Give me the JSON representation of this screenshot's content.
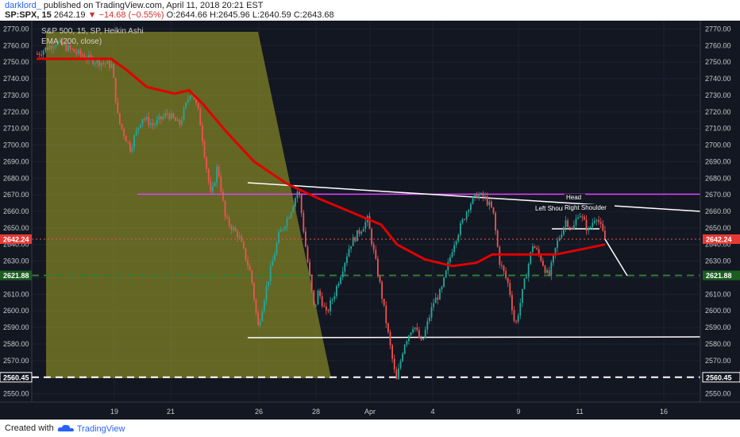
{
  "header": {
    "author": "darklord_",
    "published": "published on TradingView.com, April 11, 2018 20:21 EST",
    "symbol": "SP:SPX, 15",
    "last": "2642.19",
    "change": "−14.68 (−0.55%)",
    "o_label": "O:",
    "o": "2644.66",
    "h_label": "H:",
    "h": "2645.96",
    "l_label": "L:",
    "l": "2640.59",
    "c_label": "C:",
    "c": "2643.68"
  },
  "footer": {
    "created_with": "Created with",
    "brand": "TradingView"
  },
  "colors": {
    "background": "#131722",
    "bull": "#26a69a",
    "bear": "#ef5350",
    "ema": "#e00000",
    "resistance": "#e040fb",
    "price_badge": "#e53935",
    "support_badge": "#1b5e20",
    "triangle": "#a8a826"
  },
  "chart_data": {
    "type": "candlestick",
    "title": "S&P 500, 15, SP, Heikin Ashi",
    "indicator": "EMA (200, close)",
    "ylim": [
      2545,
      2775
    ],
    "y_ticks": [
      "2770.00",
      "2760.00",
      "2750.00",
      "2740.00",
      "2730.00",
      "2720.00",
      "2710.00",
      "2700.00",
      "2690.00",
      "2680.00",
      "2670.00",
      "2660.00",
      "2650.00",
      "2640.00",
      "2630.00",
      "2620.00",
      "2610.00",
      "2600.00",
      "2590.00",
      "2580.00",
      "2570.00",
      "2560.00",
      "2550.00"
    ],
    "x_ticks": [
      "19",
      "21",
      "26",
      "28",
      "Apr",
      "4",
      "9",
      "11",
      "16"
    ],
    "price_path": [
      {
        "x": "Mar 16",
        "y": 2755
      },
      {
        "x": "Mar 16",
        "y": 2762
      },
      {
        "x": "Mar 16",
        "y": 2752
      },
      {
        "x": "Mar 19",
        "y": 2748
      },
      {
        "x": "Mar 19",
        "y": 2715
      },
      {
        "x": "Mar 19",
        "y": 2698
      },
      {
        "x": "Mar 20",
        "y": 2717
      },
      {
        "x": "Mar 20",
        "y": 2712
      },
      {
        "x": "Mar 21",
        "y": 2719
      },
      {
        "x": "Mar 21",
        "y": 2712
      },
      {
        "x": "Mar 21",
        "y": 2734
      },
      {
        "x": "Mar 22",
        "y": 2718
      },
      {
        "x": "Mar 22",
        "y": 2690
      },
      {
        "x": "Mar 22",
        "y": 2668
      },
      {
        "x": "Mar 23",
        "y": 2688
      },
      {
        "x": "Mar 23",
        "y": 2655
      },
      {
        "x": "Mar 23",
        "y": 2645
      },
      {
        "x": "Mar 26",
        "y": 2622
      },
      {
        "x": "Mar 26",
        "y": 2590
      },
      {
        "x": "Mar 26",
        "y": 2615
      },
      {
        "x": "Mar 26",
        "y": 2645
      },
      {
        "x": "Mar 27",
        "y": 2660
      },
      {
        "x": "Mar 27",
        "y": 2674
      },
      {
        "x": "Mar 27",
        "y": 2635
      },
      {
        "x": "Mar 28",
        "y": 2600
      },
      {
        "x": "Mar 28",
        "y": 2612
      },
      {
        "x": "Mar 29",
        "y": 2598
      },
      {
        "x": "Mar 29",
        "y": 2610
      },
      {
        "x": "Mar 29",
        "y": 2640
      },
      {
        "x": "Mar 29",
        "y": 2655
      },
      {
        "x": "Apr 2",
        "y": 2615
      },
      {
        "x": "Apr 2",
        "y": 2580
      },
      {
        "x": "Apr 2",
        "y": 2557
      },
      {
        "x": "Apr 3",
        "y": 2580
      },
      {
        "x": "Apr 3",
        "y": 2592
      },
      {
        "x": "Apr 4",
        "y": 2580
      },
      {
        "x": "Apr 4",
        "y": 2605
      },
      {
        "x": "Apr 4",
        "y": 2612
      },
      {
        "x": "Apr 5",
        "y": 2640
      },
      {
        "x": "Apr 5",
        "y": 2664
      },
      {
        "x": "Apr 6",
        "y": 2670
      },
      {
        "x": "Apr 6",
        "y": 2668
      },
      {
        "x": "Apr 6",
        "y": 2660
      },
      {
        "x": "Apr 9",
        "y": 2630
      },
      {
        "x": "Apr 9",
        "y": 2615
      },
      {
        "x": "Apr 9",
        "y": 2590
      },
      {
        "x": "Apr 9",
        "y": 2618
      },
      {
        "x": "Apr 10",
        "y": 2640
      },
      {
        "x": "Apr 10",
        "y": 2632
      },
      {
        "x": "Apr 10",
        "y": 2620
      },
      {
        "x": "Apr 10",
        "y": 2640
      },
      {
        "x": "Apr 10",
        "y": 2655
      },
      {
        "x": "Apr 11",
        "y": 2648
      },
      {
        "x": "Apr 11",
        "y": 2660
      },
      {
        "x": "Apr 11",
        "y": 2648
      },
      {
        "x": "Apr 11",
        "y": 2658
      },
      {
        "x": "Apr 11",
        "y": 2642
      }
    ],
    "ema_200": [
      {
        "x": "Mar 16",
        "y": 2752
      },
      {
        "x": "Mar 19",
        "y": 2752
      },
      {
        "x": "Mar 19",
        "y": 2745
      },
      {
        "x": "Mar 20",
        "y": 2735
      },
      {
        "x": "Mar 21",
        "y": 2731
      },
      {
        "x": "Mar 21",
        "y": 2733
      },
      {
        "x": "Mar 22",
        "y": 2725
      },
      {
        "x": "Mar 23",
        "y": 2708
      },
      {
        "x": "Mar 26",
        "y": 2690
      },
      {
        "x": "Mar 27",
        "y": 2677
      },
      {
        "x": "Mar 28",
        "y": 2668
      },
      {
        "x": "Mar 29",
        "y": 2660
      },
      {
        "x": "Apr 2",
        "y": 2652
      },
      {
        "x": "Apr 2",
        "y": 2640
      },
      {
        "x": "Apr 3",
        "y": 2631
      },
      {
        "x": "Apr 4",
        "y": 2627
      },
      {
        "x": "Apr 5",
        "y": 2629
      },
      {
        "x": "Apr 6",
        "y": 2634
      },
      {
        "x": "Apr 9",
        "y": 2634
      },
      {
        "x": "Apr 10",
        "y": 2634
      },
      {
        "x": "Apr 11",
        "y": 2640
      }
    ],
    "levels": {
      "current_price": "2642.24",
      "support_upper": "2621.88",
      "support_lower": "2560.45",
      "resistance": 2670
    },
    "annotations": {
      "left_shoulder": "Left Shoulder",
      "head": "Head",
      "right_shoulder": "Right Shoulder"
    },
    "grid": true
  }
}
